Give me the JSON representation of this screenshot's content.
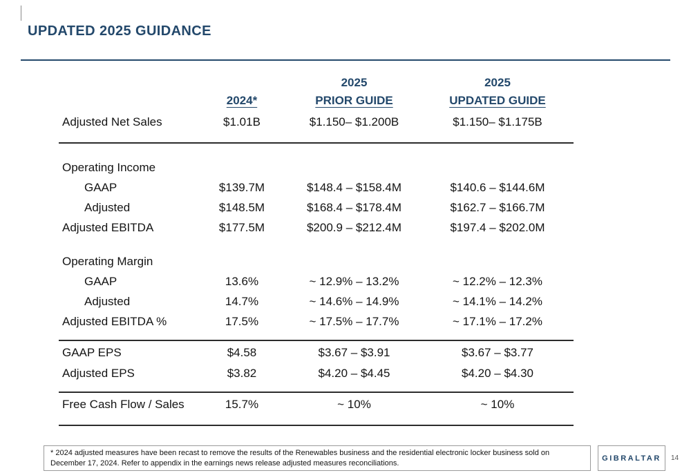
{
  "slide": {
    "title": "UPDATED 2025 GUIDANCE"
  },
  "colors": {
    "accent_navy": "#23486B",
    "body_text": "#141414",
    "rule": "#2B2B2B",
    "border_gray": "#9A9A9A"
  },
  "table": {
    "col_headers": {
      "year_prior": "2025",
      "year_updated": "2025",
      "col_2024": "2024*",
      "prior_guide": "PRIOR GUIDE",
      "updated_guide": "UPDATED GUIDE"
    },
    "rows": [
      {
        "type": "data",
        "variant": "first-row",
        "label": "Adjusted Net Sales",
        "indent": 0,
        "values": [
          "$1.01B",
          "$1.150– $1.200B",
          "$1.150– $1.175B"
        ]
      },
      {
        "type": "rule"
      },
      {
        "type": "spacer"
      },
      {
        "type": "section",
        "label": "Operating Income"
      },
      {
        "type": "data",
        "label": "GAAP",
        "indent": 1,
        "values": [
          "$139.7M",
          "$148.4 – $158.4M",
          "$140.6 – $144.6M"
        ]
      },
      {
        "type": "data",
        "label": "Adjusted",
        "indent": 1,
        "values": [
          "$148.5M",
          "$168.4 – $178.4M",
          "$162.7 – $166.7M"
        ]
      },
      {
        "type": "data",
        "label": "Adjusted EBITDA",
        "indent": 0,
        "values": [
          "$177.5M",
          "$200.9 – $212.4M",
          "$197.4 – $202.0M"
        ]
      },
      {
        "type": "spacer"
      },
      {
        "type": "section",
        "label": "Operating Margin"
      },
      {
        "type": "data",
        "label": "GAAP",
        "indent": 1,
        "values": [
          "13.6%",
          "~ 12.9% – 13.2%",
          "~ 12.2% – 12.3%"
        ]
      },
      {
        "type": "data",
        "label": "Adjusted",
        "indent": 1,
        "values": [
          "14.7%",
          "~ 14.6% – 14.9%",
          "~ 14.1% – 14.2%"
        ]
      },
      {
        "type": "data",
        "label": "Adjusted EBITDA %",
        "indent": 0,
        "values": [
          "17.5%",
          "~ 17.5% – 17.7%",
          "~ 17.1% – 17.2%"
        ]
      },
      {
        "type": "rule"
      },
      {
        "type": "data",
        "variant": "eps-first",
        "label": "GAAP EPS",
        "indent": 0,
        "values": [
          "$4.58",
          "$3.67 – $3.91",
          "$3.67 – $3.77"
        ]
      },
      {
        "type": "data",
        "label": "Adjusted EPS",
        "indent": 0,
        "values": [
          "$3.82",
          "$4.20 – $4.45",
          "$4.20 – $4.30"
        ]
      },
      {
        "type": "rule"
      },
      {
        "type": "data",
        "variant": "fcf-row",
        "label": "Free Cash Flow / Sales",
        "indent": 0,
        "values": [
          "15.7%",
          "~ 10%",
          "~ 10%"
        ]
      },
      {
        "type": "rule"
      }
    ]
  },
  "footer": {
    "footnote": "* 2024 adjusted measures have been recast to remove the results of the Renewables business and the residential electronic locker business sold on December 17, 2024. Refer to appendix in the earnings news release adjusted measures reconciliations.",
    "logo_text": "GIBRALTAR",
    "page_number": "14"
  }
}
